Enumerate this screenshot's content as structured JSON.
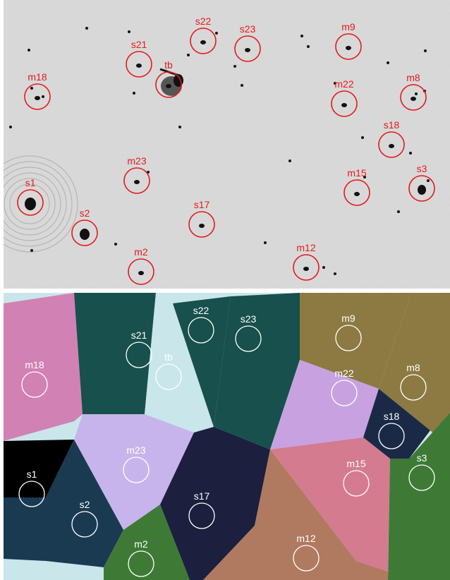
{
  "top_panel": {
    "description_colors": {
      "background": "#dcdcdc",
      "marker": "#e41a1c",
      "label": "#e41a1c"
    },
    "sources": [
      {
        "label": "s1"
      },
      {
        "label": "s2"
      },
      {
        "label": "m2"
      },
      {
        "label": "m23"
      },
      {
        "label": "s17"
      },
      {
        "label": "m12"
      },
      {
        "label": "m15"
      },
      {
        "label": "s3"
      },
      {
        "label": "s18"
      },
      {
        "label": "m22"
      },
      {
        "label": "m8"
      },
      {
        "label": "m9"
      },
      {
        "label": "s23"
      },
      {
        "label": "s22"
      },
      {
        "label": "s21"
      },
      {
        "label": "tb"
      },
      {
        "label": "m18"
      }
    ]
  },
  "bottom_panel": {
    "marker_color": "#ffffff",
    "regions": [
      {
        "label": "m18",
        "color": "#d181b4"
      },
      {
        "label": "s21",
        "color": "#17504c"
      },
      {
        "label": "tb",
        "color": "#c9e6ea"
      },
      {
        "label": "s22",
        "color": "#17504c"
      },
      {
        "label": "s23",
        "color": "#17504c"
      },
      {
        "label": "m9",
        "color": "#8d7a42"
      },
      {
        "label": "m22",
        "color": "#c8a2e0"
      },
      {
        "label": "m8",
        "color": "#8d7a42"
      },
      {
        "label": "s18",
        "color": "#1a2a46"
      },
      {
        "label": "m23",
        "color": "#c8b4ec"
      },
      {
        "label": "s1",
        "color": "#000000"
      },
      {
        "label": "s2",
        "color": "#1a3a52"
      },
      {
        "label": "s17",
        "color": "#1c1f3e"
      },
      {
        "label": "m15",
        "color": "#d47b8f"
      },
      {
        "label": "s3",
        "color": "#3e7a36"
      },
      {
        "label": "m2",
        "color": "#3e7a36"
      },
      {
        "label": "m12",
        "color": "#b07a60"
      }
    ]
  }
}
